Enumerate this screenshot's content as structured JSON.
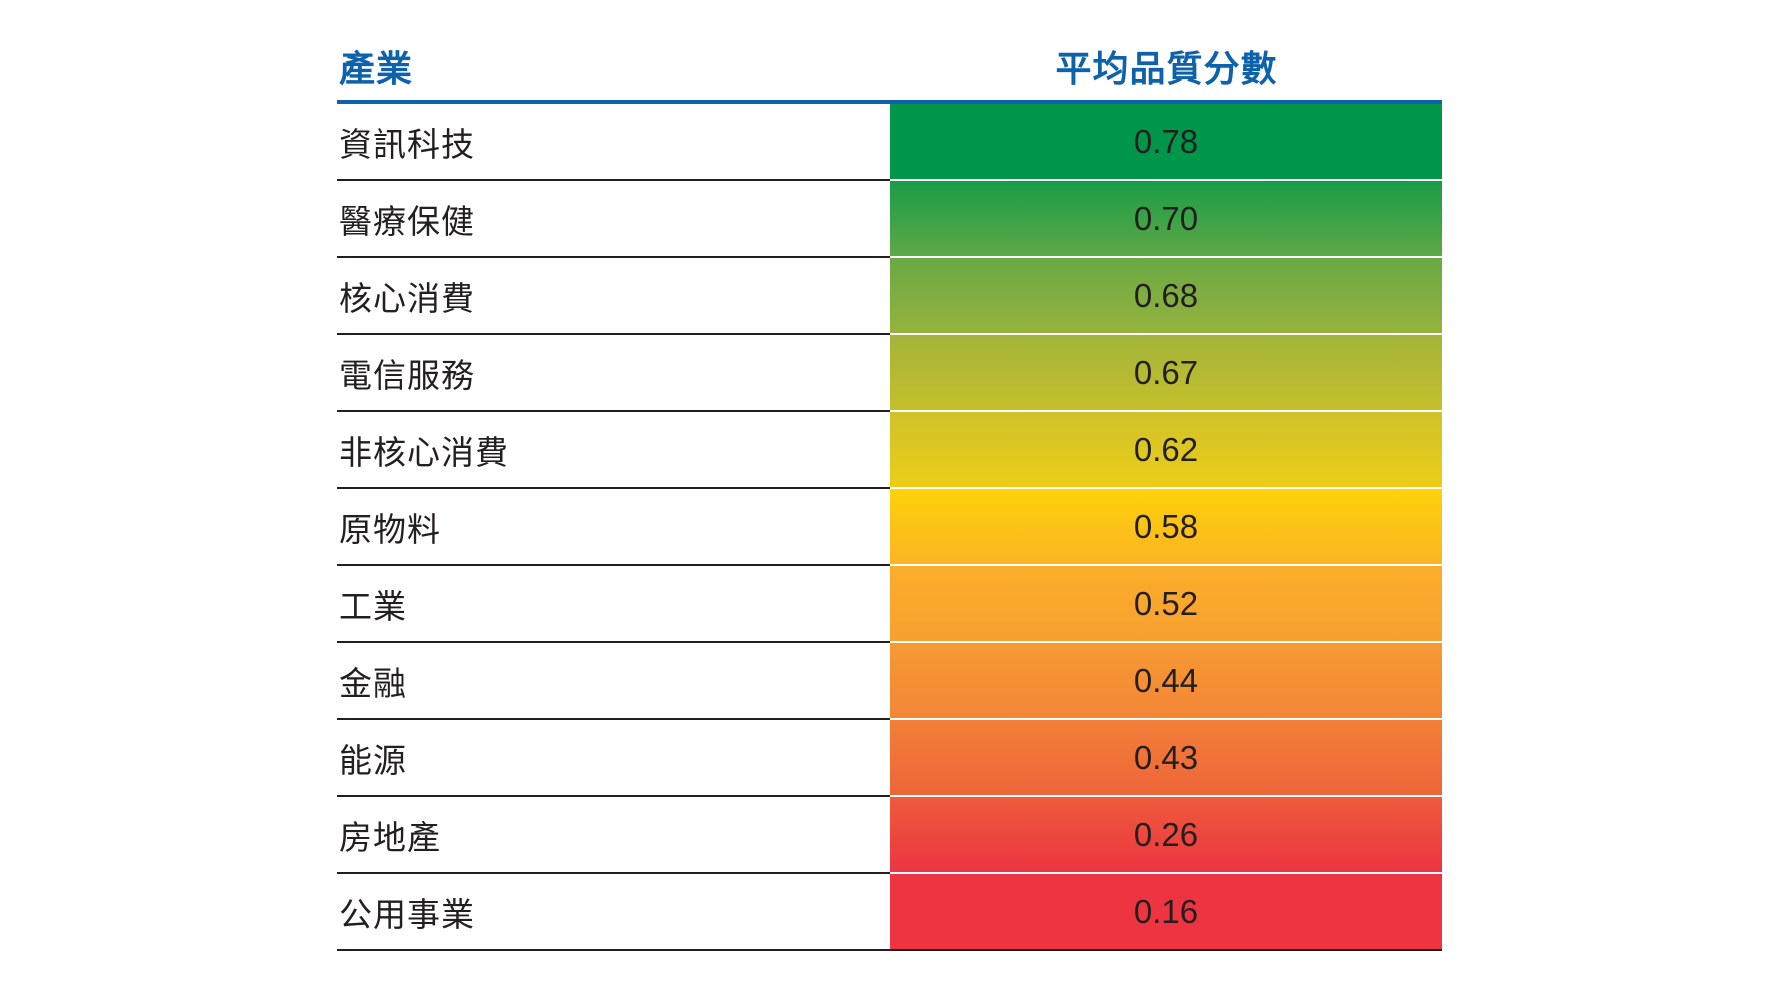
{
  "header": {
    "industry_label": "產業",
    "score_label": "平均品質分數"
  },
  "colors": {
    "header_blue": "#0d62ab",
    "text": "#231f20",
    "high": "#009649",
    "mid": "#fdd20a",
    "low": "#ee3440"
  },
  "rows": [
    {
      "industry": "資訊科技",
      "score": "0.78"
    },
    {
      "industry": "醫療保健",
      "score": "0.70"
    },
    {
      "industry": "核心消費",
      "score": "0.68"
    },
    {
      "industry": "電信服務",
      "score": "0.67"
    },
    {
      "industry": "非核心消費",
      "score": "0.62"
    },
    {
      "industry": "原物料",
      "score": "0.58"
    },
    {
      "industry": "工業",
      "score": "0.52"
    },
    {
      "industry": "金融",
      "score": "0.44"
    },
    {
      "industry": "能源",
      "score": "0.43"
    },
    {
      "industry": "房地產",
      "score": "0.26"
    },
    {
      "industry": "公用事業",
      "score": "0.16"
    }
  ],
  "chart_data": {
    "type": "table",
    "title": "",
    "columns": [
      "產業",
      "平均品質分數"
    ],
    "categories": [
      "資訊科技",
      "醫療保健",
      "核心消費",
      "電信服務",
      "非核心消費",
      "原物料",
      "工業",
      "金融",
      "能源",
      "房地產",
      "公用事業"
    ],
    "values": [
      0.78,
      0.7,
      0.68,
      0.67,
      0.62,
      0.58,
      0.52,
      0.44,
      0.43,
      0.26,
      0.16
    ],
    "color_scale": "green (high) → yellow → red (low) heatmap on score column",
    "xlabel": "",
    "ylabel": ""
  }
}
